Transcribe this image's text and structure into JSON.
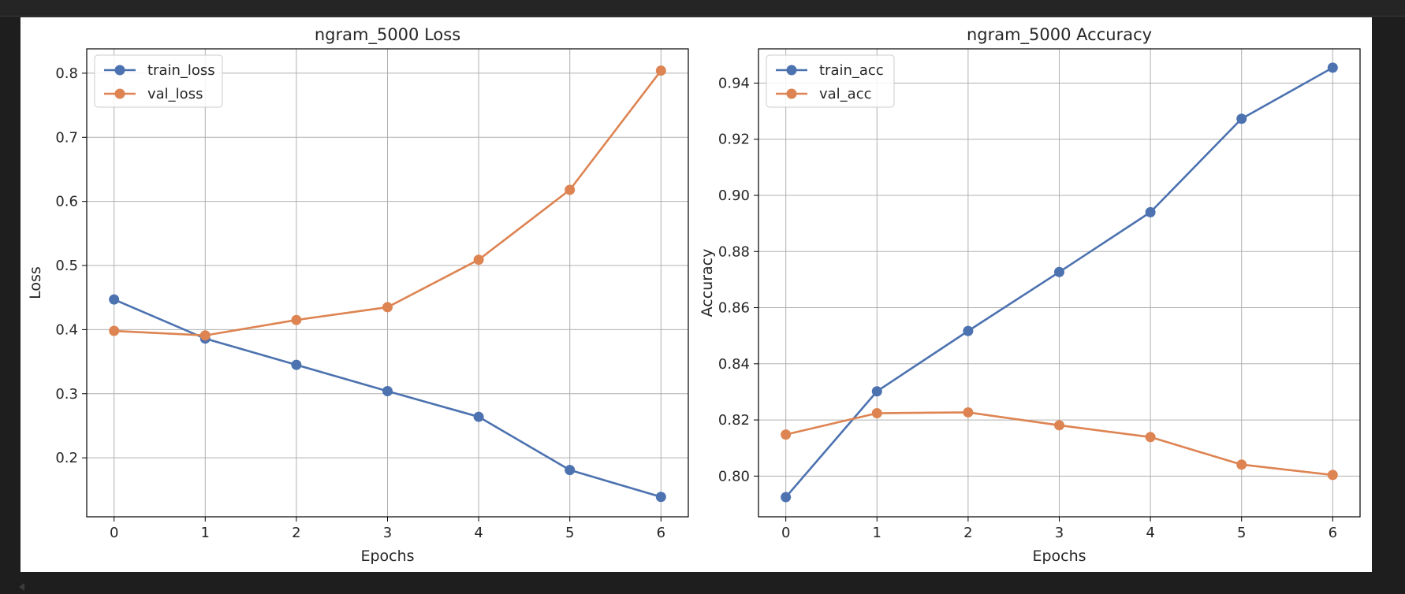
{
  "chart_data": [
    {
      "type": "line",
      "title": "ngram_5000 Loss",
      "xlabel": "Epochs",
      "ylabel": "Loss",
      "x": [
        0,
        1,
        2,
        3,
        4,
        5,
        6
      ],
      "xticks": [
        "0",
        "1",
        "2",
        "3",
        "4",
        "5",
        "6"
      ],
      "yticks": [
        "0.2",
        "0.3",
        "0.4",
        "0.5",
        "0.6",
        "0.7",
        "0.8"
      ],
      "xlim": [
        -0.3,
        6.3
      ],
      "ylim": [
        0.108,
        0.838
      ],
      "grid": true,
      "legend_position": "top-left",
      "series": [
        {
          "name": "train_loss",
          "color": "#4c72b0",
          "marker": "circle",
          "values": [
            0.447,
            0.386,
            0.345,
            0.304,
            0.264,
            0.181,
            0.139
          ]
        },
        {
          "name": "val_loss",
          "color": "#dd8452",
          "marker": "circle",
          "values": [
            0.398,
            0.391,
            0.415,
            0.435,
            0.509,
            0.618,
            0.804
          ]
        }
      ]
    },
    {
      "type": "line",
      "title": "ngram_5000 Accuracy",
      "xlabel": "Epochs",
      "ylabel": "Accuracy",
      "x": [
        0,
        1,
        2,
        3,
        4,
        5,
        6
      ],
      "xticks": [
        "0",
        "1",
        "2",
        "3",
        "4",
        "5",
        "6"
      ],
      "yticks": [
        "0.80",
        "0.82",
        "0.84",
        "0.86",
        "0.88",
        "0.90",
        "0.92",
        "0.94"
      ],
      "xlim": [
        -0.3,
        6.3
      ],
      "ylim": [
        0.7855,
        0.9522
      ],
      "grid": true,
      "legend_position": "top-left",
      "series": [
        {
          "name": "train_acc",
          "color": "#4c72b0",
          "marker": "circle",
          "values": [
            0.7925,
            0.8302,
            0.8517,
            0.8727,
            0.894,
            0.9273,
            0.9455
          ]
        },
        {
          "name": "val_acc",
          "color": "#dd8452",
          "marker": "circle",
          "values": [
            0.8148,
            0.8224,
            0.8227,
            0.8181,
            0.8139,
            0.8041,
            0.8004
          ]
        }
      ]
    }
  ]
}
